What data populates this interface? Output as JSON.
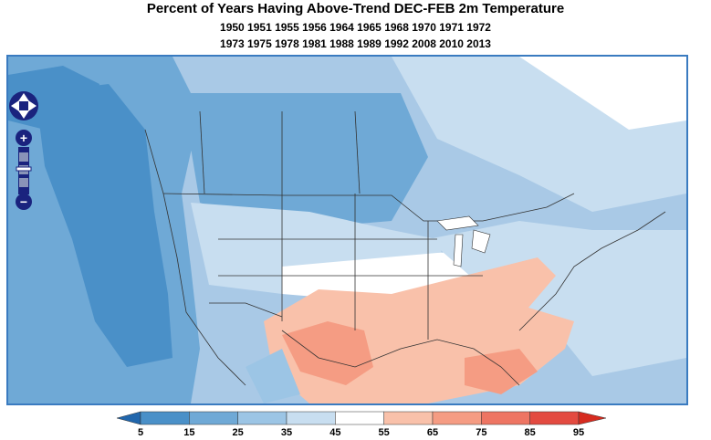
{
  "title": {
    "line1": "Percent of Years Having Above-Trend DEC-FEB 2m Temperature",
    "line2": "1950 1951 1955 1956 1964 1965 1968 1970 1971 1972",
    "line3": "1973 1975 1978 1981 1988 1989 1992 2008 2010 2013"
  },
  "map": {
    "region": "North America",
    "controls": {
      "pan": [
        "pan-up",
        "pan-left",
        "pan-right",
        "pan-down"
      ],
      "zoom_in_label": "+",
      "zoom_out_label": "−"
    }
  },
  "colorbar": {
    "ticks": [
      "5",
      "15",
      "25",
      "35",
      "45",
      "55",
      "65",
      "75",
      "85",
      "95"
    ],
    "colors": [
      "#2166ac",
      "#4a90c8",
      "#6fa9d6",
      "#9cc5e5",
      "#c8def0",
      "#ffffff",
      "#f9c1aa",
      "#f59c83",
      "#ee7563",
      "#e34a40",
      "#d62b1f"
    ]
  }
}
